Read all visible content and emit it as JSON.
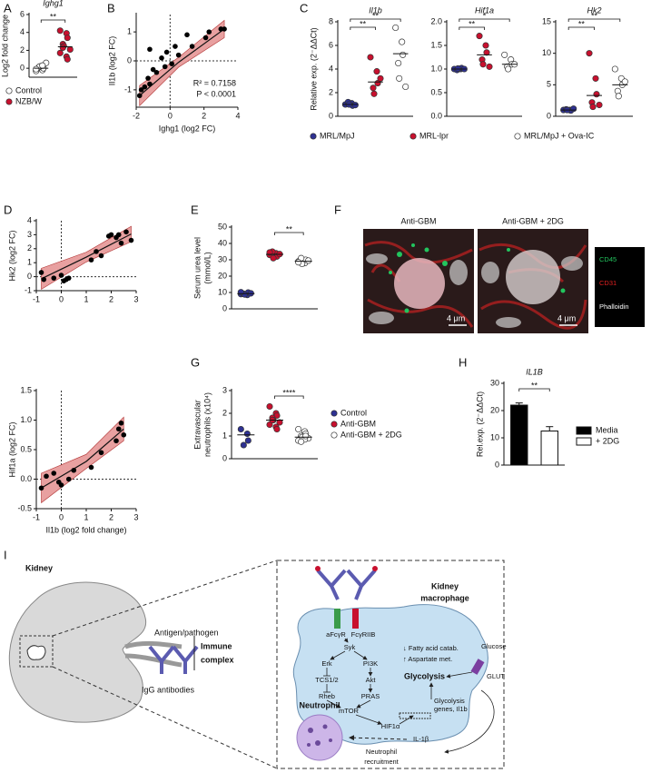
{
  "panel_labels": [
    "A",
    "B",
    "C",
    "D",
    "E",
    "F",
    "G",
    "H",
    "I"
  ],
  "chart_data": [
    {
      "type": "strip",
      "title": "Ighg1",
      "ylabel": "Log2 fold change",
      "ylim": [
        -1,
        6
      ],
      "yticks": [
        0,
        2,
        4,
        6
      ],
      "series": [
        {
          "name": "Control",
          "color": "#ffffff",
          "values": [
            -0.3,
            -0.2,
            0,
            0.1,
            0.2,
            0.6,
            -0.1,
            0.3
          ],
          "center": 0
        },
        {
          "name": "NZB/W",
          "color": "#c8102e",
          "values": [
            4.2,
            3.9,
            3.4,
            2.7,
            2.5,
            2.1,
            1.7,
            1.3,
            1.0,
            2.3
          ],
          "center": 2.4
        }
      ],
      "brackets": [
        {
          "from": 0,
          "to": 1,
          "label": "**"
        }
      ]
    },
    {
      "type": "scatter",
      "xlabel": "Ighg1 (log2 FC)",
      "ylabel": "Il1b (log2 FC)",
      "xlim": [
        -2,
        4
      ],
      "xticks": [
        -2,
        0,
        2,
        4
      ],
      "ylim": [
        -1.6,
        1.6
      ],
      "yticks": [
        -1,
        0,
        1
      ],
      "zero_lines": true,
      "x": [
        -1.8,
        -1.7,
        -1.5,
        -1.3,
        -1.2,
        -1.0,
        -0.8,
        -0.5,
        -0.3,
        -0.2,
        0.1,
        0.3,
        0.5,
        1.0,
        1.3,
        2.1,
        2.3,
        3.0,
        3.2,
        -1.2
      ],
      "values": [
        -1.2,
        -1.0,
        -0.9,
        -0.6,
        -0.8,
        -0.3,
        -0.4,
        0.1,
        -0.2,
        0.3,
        -0.1,
        0.5,
        0.2,
        0.9,
        0.5,
        0.8,
        1.0,
        1.1,
        1.1,
        0.4
      ],
      "fit": {
        "x": [
          -1.8,
          0.5,
          3.2
        ],
        "y": [
          -1.2,
          -0.05,
          1.1
        ],
        "upper": [
          -0.85,
          0.12,
          1.4
        ],
        "lower": [
          -1.55,
          -0.22,
          0.8
        ],
        "color": "#e8a0a0"
      },
      "annotations": [
        "R² = 0.7158",
        "P < 0.0001"
      ]
    },
    {
      "type": "strip",
      "title": "Il1b",
      "ylabel": "Relative exp. (2⁻ΔΔCt)",
      "ylim": [
        0,
        8
      ],
      "yticks": [
        0,
        2,
        4,
        6,
        8
      ],
      "series": [
        {
          "name": "MRL/MpJ",
          "color": "#2e3192",
          "values": [
            1.0,
            1.1,
            0.9,
            1.2,
            1.0,
            0.95
          ],
          "center": 1.0
        },
        {
          "name": "MRL-lpr",
          "color": "#c8102e",
          "values": [
            5.0,
            3.8,
            2.8,
            2.4,
            1.9,
            3.2
          ],
          "center": 2.9
        },
        {
          "name": "MRL/MpJ + Ova-IC",
          "color": "#ffffff",
          "values": [
            7.5,
            6.3,
            5.2,
            4.5,
            3.2,
            2.5
          ],
          "center": 5.3
        }
      ],
      "brackets": [
        {
          "from": 0,
          "to": 1,
          "label": "**"
        },
        {
          "from": 0,
          "to": 2,
          "label": "**"
        }
      ]
    },
    {
      "type": "strip",
      "title": "Hif1a",
      "ylim": [
        0,
        2
      ],
      "yticks": [
        {
          "value": 0,
          "label": "0.0"
        },
        0.5,
        {
          "value": 1,
          "label": "1.0"
        },
        1.5,
        {
          "value": 2,
          "label": "2.0"
        }
      ],
      "series": [
        {
          "color": "#2e3192",
          "values": [
            1.0,
            1.0,
            1.02,
            0.98,
            1.01,
            1.0
          ],
          "center": 1.0
        },
        {
          "color": "#c8102e",
          "values": [
            1.7,
            1.5,
            1.35,
            1.2,
            1.1,
            1.05
          ],
          "center": 1.3
        },
        {
          "color": "#ffffff",
          "values": [
            1.3,
            1.2,
            1.1,
            1.05,
            1.0,
            1.1
          ],
          "center": 1.1
        }
      ],
      "brackets": [
        {
          "from": 0,
          "to": 1,
          "label": "**"
        },
        {
          "from": 0,
          "to": 2,
          "label": "*"
        }
      ]
    },
    {
      "type": "strip",
      "title": "Hk2",
      "ylim": [
        0,
        15
      ],
      "yticks": [
        0,
        5,
        10,
        15
      ],
      "series": [
        {
          "color": "#2e3192",
          "values": [
            1.0,
            1.0,
            0.9,
            1.1,
            1.0,
            1.2
          ],
          "center": 1.0
        },
        {
          "color": "#c8102e",
          "values": [
            10,
            6,
            3.5,
            2.2,
            1.5,
            1.8
          ],
          "center": 3.3
        },
        {
          "color": "#ffffff",
          "values": [
            7.5,
            6,
            5,
            4,
            3.2,
            5.5
          ],
          "center": 5.0
        }
      ],
      "brackets": [
        {
          "from": 0,
          "to": 1,
          "label": "**"
        },
        {
          "from": 0,
          "to": 2,
          "label": "**"
        }
      ]
    },
    {
      "type": "scatter",
      "ylabel": "Hk2 (log2 FC)",
      "xlim": [
        -1,
        3
      ],
      "xticks": [
        -1,
        0,
        1,
        2,
        3
      ],
      "ylim": [
        -1,
        4
      ],
      "yticks": [
        -1,
        0,
        1,
        2,
        3,
        4
      ],
      "zero_lines": true,
      "x": [
        -0.8,
        -0.7,
        -0.3,
        0,
        0.1,
        0.2,
        0.3,
        1.2,
        1.4,
        1.6,
        1.9,
        2.0,
        2.2,
        2.3,
        2.4,
        2.6,
        2.8
      ],
      "values": [
        0.3,
        -0.2,
        -0.1,
        0.1,
        -0.3,
        -0.2,
        -0.1,
        1.2,
        1.8,
        1.5,
        2.9,
        3.0,
        2.8,
        3.0,
        2.4,
        3.2,
        2.6
      ],
      "fit": {
        "x": [
          -0.8,
          1,
          2.8
        ],
        "y": [
          -0.15,
          1.4,
          3.05
        ],
        "upper": [
          0.6,
          1.75,
          3.6
        ],
        "lower": [
          -0.9,
          1.05,
          2.5
        ],
        "color": "#e8a0a0"
      }
    },
    {
      "type": "scatter",
      "ylabel": "Hif1a (log2 FC)",
      "xlabel": "Il1b (log2 fold change)",
      "xlim": [
        -1,
        3
      ],
      "xticks": [
        -1,
        0,
        1,
        2,
        3
      ],
      "ylim": [
        -0.5,
        1.5
      ],
      "yticks": [
        -0.5,
        {
          "value": 0,
          "label": "0.0"
        },
        0.5,
        {
          "value": 1,
          "label": "1.0"
        },
        1.5
      ],
      "zero_lines": true,
      "x": [
        -0.8,
        -0.6,
        -0.3,
        -0.1,
        0,
        0.3,
        0.5,
        1.2,
        1.6,
        2.2,
        2.3,
        2.4,
        2.5
      ],
      "values": [
        -0.15,
        0.05,
        0.1,
        -0.05,
        -0.1,
        0,
        0.15,
        0.2,
        0.45,
        0.65,
        0.85,
        0.95,
        0.75
      ],
      "fit": {
        "x": [
          -0.8,
          1,
          2.5
        ],
        "y": [
          -0.15,
          0.3,
          0.85
        ],
        "upper": [
          0.1,
          0.42,
          1.05
        ],
        "lower": [
          -0.4,
          0.18,
          0.65
        ],
        "color": "#e8a0a0"
      }
    },
    {
      "type": "strip",
      "ylabel": [
        "Serum urea level",
        "(mmol/L)"
      ],
      "ylim": [
        0,
        50
      ],
      "yticks": [
        0,
        10,
        20,
        30,
        40,
        50
      ],
      "series": [
        {
          "color": "#2e3192",
          "values": [
            9,
            8.5,
            10,
            9.2,
            8.8,
            9.5,
            10.2
          ],
          "center": 9.3
        },
        {
          "color": "#c8102e",
          "values": [
            33,
            34,
            32,
            35,
            31,
            33.5,
            34.5
          ],
          "center": 33.3
        },
        {
          "color": "#ffffff",
          "values": [
            29,
            28,
            30,
            31,
            27.5,
            29.5,
            28.5
          ],
          "center": 29.1
        }
      ],
      "brackets": [
        {
          "from": 1,
          "to": 2,
          "label": "**"
        }
      ]
    },
    {
      "type": "strip",
      "ylabel": [
        "Extravascular",
        "neutrophils (x10⁴)"
      ],
      "ylim": [
        0,
        3
      ],
      "yticks": [
        0,
        1,
        2,
        3
      ],
      "series": [
        {
          "name": "Control",
          "color": "#2e3192",
          "values": [
            1.3,
            1.1,
            0.8,
            0.6
          ],
          "center": 1.05
        },
        {
          "name": "Anti-GBM",
          "color": "#c8102e",
          "values": [
            2.3,
            2.0,
            1.9,
            1.8,
            1.7,
            1.6,
            1.5,
            1.4,
            1.3,
            1.7
          ],
          "center": 1.7
        },
        {
          "name": "Anti-GBM + 2DG",
          "color": "#ffffff",
          "values": [
            1.3,
            1.2,
            1.1,
            1.0,
            0.95,
            0.9,
            0.8,
            0.85,
            1.0,
            0.75
          ],
          "center": 0.95
        }
      ],
      "brackets": [
        {
          "from": 1,
          "to": 2,
          "label": "****"
        }
      ]
    },
    {
      "type": "bar",
      "title": "IL1B",
      "ylabel": "Rel.exp. (2⁻ΔΔCt)",
      "ylim": [
        0,
        30
      ],
      "yticks": [
        0,
        10,
        20,
        30
      ],
      "series": [
        {
          "name": "Media",
          "color": "#000000",
          "values": [
            22
          ],
          "errors": [
            0.8
          ]
        },
        {
          "name": "+ 2DG",
          "color": "#ffffff",
          "values": [
            12.5
          ],
          "errors": [
            1.6
          ]
        }
      ],
      "brackets": [
        {
          "from": 0,
          "to": 1,
          "label": "**"
        }
      ]
    }
  ],
  "figure_F": {
    "titles": [
      "Anti-GBM",
      "Anti-GBM + 2DG"
    ],
    "scale": "4 μm",
    "channels": [
      {
        "name": "CD45",
        "color": "#22c55e"
      },
      {
        "name": "CD31",
        "color": "#e02020"
      },
      {
        "name": "Phalloidin",
        "color": "#ffffff"
      }
    ]
  },
  "diagram": {
    "kidney": "Kidney",
    "antigen": "Antigen/pathogen",
    "igg": "IgG antibodies",
    "immune_complex": [
      "Immune",
      "complex"
    ],
    "macrophage": [
      "Kidney",
      "macrophage"
    ],
    "receptors": [
      "aFcγR",
      "FcγRIIB"
    ],
    "pathway": [
      "Syk",
      "Erk",
      "PI3K",
      "TCS1/2",
      "Akt",
      "Rheb",
      "PRAS",
      "mTOR",
      "HIF1α"
    ],
    "metabolism": [
      "↓ Fatty acid catab.",
      "↑ Aspartate met."
    ],
    "glycolysis": "Glycolysis",
    "glucose": "Glucose",
    "glut": "GLUT",
    "genes": [
      "Glycolysis",
      "genes, Il1b"
    ],
    "cytokine": "IL-1β",
    "neutrophil": "Neutrophil",
    "recruitment": [
      "Neutrophil",
      "recruitment"
    ]
  }
}
